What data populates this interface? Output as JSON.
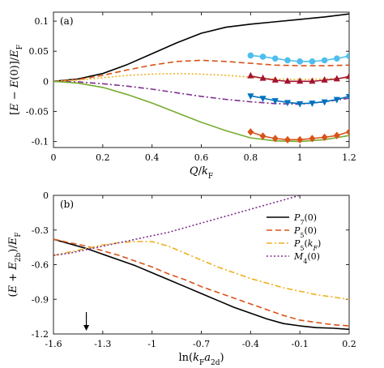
{
  "chart_data": [
    {
      "panel": "(a)",
      "type": "line",
      "ylabel": "[E − E(0)]/E_F",
      "xlabel": "Q/k_F",
      "xlim": [
        0,
        1.2
      ],
      "ylim": [
        -0.11,
        0.115
      ],
      "xticks": [
        "0",
        "0.2",
        "0.4",
        "0.6",
        "0.8",
        "1",
        "1.2"
      ],
      "xtick_values": [
        0,
        0.2,
        0.4,
        0.6,
        0.8,
        1.0,
        1.2
      ],
      "yticks": [
        "-0.1",
        "-0.05",
        "0",
        "0.05",
        "0.1"
      ],
      "ytick_values": [
        -0.1,
        -0.05,
        0,
        0.05,
        0.1
      ],
      "series": [
        {
          "color": "#000000",
          "dash": "solid",
          "marker": null,
          "x": [
            0,
            0.1,
            0.2,
            0.3,
            0.4,
            0.5,
            0.6,
            0.7,
            0.8,
            0.9,
            1.0,
            1.1,
            1.2
          ],
          "y": [
            0,
            0.004,
            0.013,
            0.028,
            0.046,
            0.064,
            0.08,
            0.09,
            0.095,
            0.099,
            0.103,
            0.107,
            0.112
          ]
        },
        {
          "color": "#d95319",
          "dash": "dashed",
          "marker": null,
          "x": [
            0,
            0.1,
            0.2,
            0.3,
            0.4,
            0.5,
            0.6,
            0.7,
            0.8,
            0.9,
            1.0,
            1.1,
            1.2
          ],
          "y": [
            0,
            0.003,
            0.01,
            0.019,
            0.027,
            0.033,
            0.035,
            0.033,
            0.03,
            0.027,
            0.026,
            0.026,
            0.027
          ]
        },
        {
          "color": "#edb120",
          "dash": "dotted",
          "marker": null,
          "x": [
            0,
            0.1,
            0.2,
            0.3,
            0.4,
            0.5,
            0.6,
            0.7,
            0.8,
            0.9,
            1.0,
            1.1,
            1.2
          ],
          "y": [
            0,
            0.002,
            0.006,
            0.01,
            0.012,
            0.013,
            0.012,
            0.01,
            0.007,
            0.004,
            0.003,
            0.004,
            0.006
          ]
        },
        {
          "color": "#7e2f8e",
          "dash": "dashdot",
          "marker": null,
          "x": [
            0,
            0.1,
            0.2,
            0.3,
            0.4,
            0.5,
            0.6,
            0.7,
            0.8,
            0.9,
            1.0,
            1.1,
            1.2
          ],
          "y": [
            0,
            -0.001,
            -0.004,
            -0.008,
            -0.013,
            -0.019,
            -0.025,
            -0.03,
            -0.034,
            -0.037,
            -0.038,
            -0.034,
            -0.028
          ]
        },
        {
          "color": "#77ac30",
          "dash": "solid",
          "marker": null,
          "x": [
            0,
            0.1,
            0.2,
            0.3,
            0.4,
            0.5,
            0.6,
            0.7,
            0.8,
            0.9,
            1.0,
            1.1,
            1.2
          ],
          "y": [
            0,
            -0.003,
            -0.01,
            -0.022,
            -0.036,
            -0.052,
            -0.068,
            -0.082,
            -0.094,
            -0.099,
            -0.1,
            -0.097,
            -0.09
          ]
        },
        {
          "color": "#4dbeee",
          "dash": "solid",
          "marker": "circle",
          "x": [
            0.8,
            0.85,
            0.9,
            0.95,
            1.0,
            1.05,
            1.1,
            1.15,
            1.2
          ],
          "y": [
            0.043,
            0.041,
            0.038,
            0.035,
            0.033,
            0.033,
            0.035,
            0.038,
            0.042
          ]
        },
        {
          "color": "#a2142f",
          "dash": "solid",
          "marker": "triangle-up",
          "x": [
            0.8,
            0.85,
            0.9,
            0.95,
            1.0,
            1.05,
            1.1,
            1.15,
            1.2
          ],
          "y": [
            0.009,
            0.005,
            0.002,
            0.0,
            0.0,
            0.0,
            0.002,
            0.004,
            0.008
          ]
        },
        {
          "color": "#0072bd",
          "dash": "solid",
          "marker": "triangle-down",
          "x": [
            0.8,
            0.85,
            0.9,
            0.95,
            1.0,
            1.05,
            1.1,
            1.15,
            1.2
          ],
          "y": [
            -0.024,
            -0.028,
            -0.032,
            -0.035,
            -0.037,
            -0.036,
            -0.034,
            -0.03,
            -0.025
          ]
        },
        {
          "color": "#d95319",
          "dash": "solid",
          "marker": "diamond",
          "x": [
            0.8,
            0.85,
            0.9,
            0.95,
            1.0,
            1.05,
            1.1,
            1.15,
            1.2
          ],
          "y": [
            -0.084,
            -0.091,
            -0.095,
            -0.097,
            -0.097,
            -0.095,
            -0.093,
            -0.09,
            -0.084
          ]
        }
      ]
    },
    {
      "panel": "(b)",
      "type": "line",
      "ylabel": "(E + E_2b)/E_F",
      "xlabel": "ln(k_F a_2d)",
      "xlim": [
        -1.6,
        0.2
      ],
      "ylim": [
        -1.2,
        0
      ],
      "xticks": [
        "-1.6",
        "-1.3",
        "-1",
        "-0.7",
        "-0.4",
        "-0.1",
        "0.2"
      ],
      "xtick_values": [
        -1.6,
        -1.3,
        -1.0,
        -0.7,
        -0.4,
        -0.1,
        0.2
      ],
      "yticks": [
        "0",
        "-0.3",
        "-0.6",
        "-0.9",
        "-1.2"
      ],
      "ytick_values": [
        0,
        -0.3,
        -0.6,
        -0.9,
        -1.2
      ],
      "arrow_at_x": -1.4,
      "legend_position": "top-right",
      "series": [
        {
          "name": "P7(0)",
          "color": "#000000",
          "dash": "solid",
          "x": [
            -1.6,
            -1.5,
            -1.4,
            -1.3,
            -1.2,
            -1.1,
            -1.0,
            -0.9,
            -0.8,
            -0.7,
            -0.6,
            -0.5,
            -0.4,
            -0.3,
            -0.2,
            -0.1,
            0.0,
            0.1,
            0.2
          ],
          "y": [
            -0.38,
            -0.42,
            -0.46,
            -0.51,
            -0.56,
            -0.61,
            -0.67,
            -0.73,
            -0.79,
            -0.85,
            -0.91,
            -0.97,
            -1.02,
            -1.07,
            -1.11,
            -1.13,
            -1.145,
            -1.15,
            -1.16
          ]
        },
        {
          "name": "P5(0)",
          "color": "#d95319",
          "dash": "dashed",
          "x": [
            -1.6,
            -1.5,
            -1.4,
            -1.3,
            -1.2,
            -1.1,
            -1.0,
            -0.9,
            -0.8,
            -0.7,
            -0.6,
            -0.5,
            -0.4,
            -0.3,
            -0.2,
            -0.1,
            0.0,
            0.1,
            0.2
          ],
          "y": [
            -0.38,
            -0.41,
            -0.44,
            -0.48,
            -0.52,
            -0.57,
            -0.62,
            -0.68,
            -0.73,
            -0.79,
            -0.84,
            -0.89,
            -0.94,
            -0.99,
            -1.04,
            -1.08,
            -1.1,
            -1.12,
            -1.13
          ]
        },
        {
          "name": "P5(kF)",
          "color": "#edb120",
          "dash": "dashdot",
          "x": [
            -1.6,
            -1.5,
            -1.4,
            -1.3,
            -1.2,
            -1.1,
            -1.0,
            -0.9,
            -0.8,
            -0.7,
            -0.6,
            -0.5,
            -0.4,
            -0.3,
            -0.2,
            -0.1,
            0.0,
            0.1,
            0.2
          ],
          "y": [
            -0.52,
            -0.49,
            -0.46,
            -0.43,
            -0.41,
            -0.4,
            -0.4,
            -0.44,
            -0.5,
            -0.56,
            -0.62,
            -0.67,
            -0.72,
            -0.76,
            -0.8,
            -0.83,
            -0.86,
            -0.88,
            -0.9
          ]
        },
        {
          "name": "M4(0)",
          "color": "#7e2f8e",
          "dash": "dotted",
          "x": [
            -1.6,
            -1.5,
            -1.4,
            -1.3,
            -1.2,
            -1.1,
            -1.0,
            -0.9,
            -0.8,
            -0.7,
            -0.6,
            -0.5,
            -0.4,
            -0.3,
            -0.2,
            -0.1
          ],
          "y": [
            -0.52,
            -0.5,
            -0.47,
            -0.44,
            -0.41,
            -0.38,
            -0.35,
            -0.32,
            -0.28,
            -0.24,
            -0.2,
            -0.16,
            -0.12,
            -0.08,
            -0.04,
            0.0
          ]
        }
      ]
    }
  ],
  "panel_a": {
    "label": "(a)",
    "ylabel_parts": [
      "[",
      "E",
      " − ",
      "E",
      "(0)]/",
      "E",
      "F"
    ],
    "xlabel_parts": [
      "Q",
      "/",
      "k",
      "F"
    ]
  },
  "panel_b": {
    "label": "(b)",
    "ylabel_parts": [
      "(",
      "E",
      " + ",
      "E",
      "2b",
      ")/",
      "E",
      "F"
    ],
    "xlabel_parts": [
      "ln(",
      "k",
      "F",
      "a",
      "2d",
      ")"
    ]
  },
  "legend": [
    {
      "main": "P",
      "sub": "7",
      "arg": "(0)"
    },
    {
      "main": "P",
      "sub": "5",
      "arg": "(0)"
    },
    {
      "main": "P",
      "sub": "5",
      "arg": "(kF)"
    },
    {
      "main": "M",
      "sub": "4",
      "arg": "(0)"
    }
  ]
}
